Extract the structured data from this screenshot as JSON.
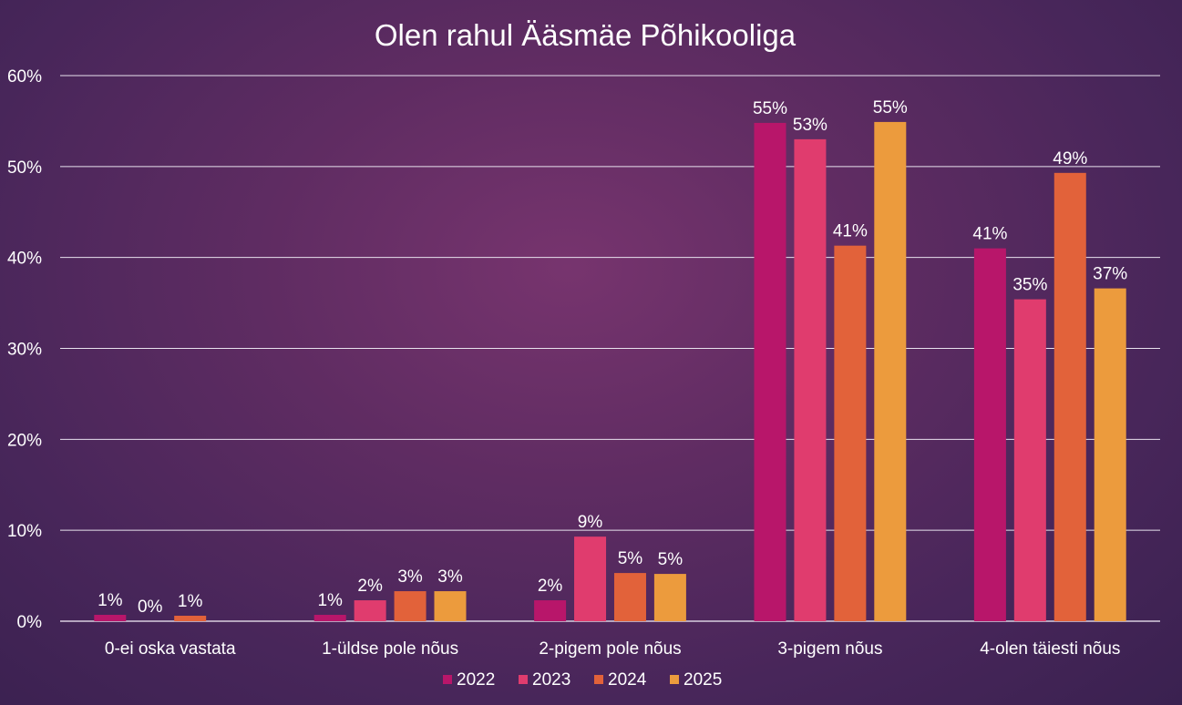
{
  "chart_data": {
    "type": "bar",
    "title": "Olen rahul Ääsmäe Põhikooliga",
    "categories": [
      "0-ei oska vastata",
      "1-üldse pole nõus",
      "2-pigem pole nõus",
      "3-pigem nõus",
      "4-olen täiesti nõus"
    ],
    "series": [
      {
        "name": "2022",
        "color": "#b8166a",
        "values": [
          0.7,
          0.7,
          2.3,
          54.8,
          41.0
        ],
        "labels": [
          "1%",
          "1%",
          "2%",
          "55%",
          "41%"
        ]
      },
      {
        "name": "2023",
        "color": "#e03c6e",
        "values": [
          null,
          2.3,
          9.3,
          53.0,
          35.4
        ],
        "labels": [
          "0%",
          "2%",
          "9%",
          "53%",
          "35%"
        ]
      },
      {
        "name": "2024",
        "color": "#e2623a",
        "values": [
          0.6,
          3.3,
          5.3,
          41.3,
          49.3
        ],
        "labels": [
          "1%",
          "3%",
          "5%",
          "41%",
          "49%"
        ]
      },
      {
        "name": "2025",
        "color": "#ec9b3d",
        "values": [
          null,
          3.3,
          5.2,
          54.9,
          36.6
        ],
        "labels": [
          "",
          "3%",
          "5%",
          "55%",
          "37%"
        ]
      }
    ],
    "ylim": [
      0,
      60
    ],
    "yticks": [
      "0%",
      "10%",
      "20%",
      "30%",
      "40%",
      "50%",
      "60%"
    ],
    "grid": true,
    "legend_position": "bottom"
  }
}
